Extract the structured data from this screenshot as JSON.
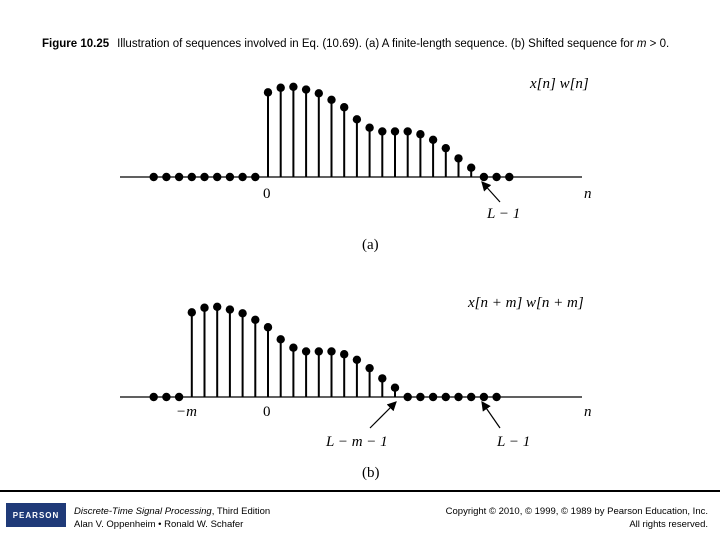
{
  "caption": {
    "figure_label": "Figure 10.25",
    "text_before_m": "Illustration of sequences involved in Eq. (10.69). (a) A finite-length sequence. (b) Shifted sequence for",
    "m_symbol": "m",
    "text_after_m": "> 0."
  },
  "panel_a": {
    "title": "x[n] w[n]",
    "origin_label": "0",
    "n_label": "n",
    "end_label": "L − 1",
    "sub_label": "(a)"
  },
  "panel_b": {
    "title": "x[n + m] w[n + m]",
    "neg_m_label": "−m",
    "origin_label": "0",
    "n_label": "n",
    "mid_label": "L − m − 1",
    "end_label": "L − 1",
    "sub_label": "(b)"
  },
  "footer": {
    "logo_text": "PEARSON",
    "book_title": "Discrete-Time Signal Processing",
    "edition": ", Third Edition",
    "authors": "Alan V. Oppenheim • Ronald W. Schafer",
    "copyright": "Copyright © 2010, © 1999, © 1989 by Pearson Education, Inc.",
    "rights": "All rights reserved."
  },
  "chart_data": {
    "type": "stem",
    "sequence_values": [
      0.91,
      0.96,
      0.97,
      0.94,
      0.9,
      0.83,
      0.75,
      0.62,
      0.53,
      0.49,
      0.49,
      0.49,
      0.46,
      0.4,
      0.31,
      0.2,
      0.1
    ],
    "zeros_before_a": 9,
    "zeros_after_a": 3,
    "shift_m": 6,
    "zeros_before_b": 3,
    "zeros_after_b": 8
  }
}
